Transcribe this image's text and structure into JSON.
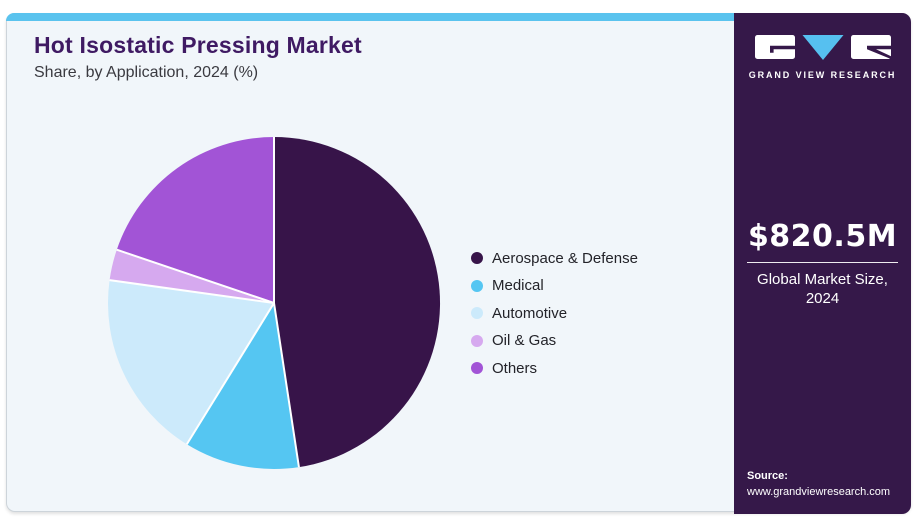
{
  "header": {
    "title": "Hot Isostatic Pressing Market",
    "subtitle": "Share, by Application, 2024 (%)"
  },
  "chart_data": {
    "type": "pie",
    "title": "Hot Isostatic Pressing Market Share, by Application, 2024 (%)",
    "unit": "%",
    "labels": [
      "Aerospace & Defense",
      "Medical",
      "Automotive",
      "Oil & Gas",
      "Others"
    ],
    "values": [
      47.6,
      11.2,
      18.4,
      3.0,
      19.8
    ],
    "colors": [
      "#371449",
      "#55c6f2",
      "#cceafb",
      "#d6a9ef",
      "#a254d6"
    ],
    "start_angle_deg": 0,
    "direction": "clockwise",
    "legend_position": "right",
    "data_labels_shown": false
  },
  "sidebar": {
    "logo_text": "GRAND VIEW RESEARCH",
    "market_size_value": "$820.5M",
    "market_size_label": "Global Market Size, 2024",
    "source_label": "Source:",
    "source_url": "www.grandviewresearch.com"
  },
  "colors": {
    "accent_bar": "#5ac3ee",
    "sidebar_bg": "#351849",
    "card_bg": "#f1f6fa",
    "title_text": "#3f1a63",
    "logo_triangle": "#56c0f0",
    "slice_separator": "#ffffff"
  }
}
